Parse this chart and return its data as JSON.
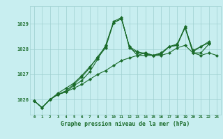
{
  "xlabel": "Graphe pression niveau de la mer (hPa)",
  "background_color": "#c8eef0",
  "grid_color": "#9ecfcf",
  "line_color": "#1a6b2a",
  "x_ticks": [
    0,
    1,
    2,
    3,
    4,
    5,
    6,
    7,
    8,
    9,
    10,
    11,
    12,
    13,
    14,
    15,
    16,
    17,
    18,
    19,
    20,
    21,
    22,
    23
  ],
  "ylim": [
    1025.4,
    1029.7
  ],
  "yticks": [
    1026,
    1027,
    1028,
    1029
  ],
  "series": [
    [
      1025.95,
      1025.68,
      1026.0,
      1026.2,
      1026.3,
      1026.45,
      1026.6,
      1026.8,
      1027.0,
      1027.15,
      1027.35,
      1027.55,
      1027.65,
      1027.75,
      1027.85,
      1027.75,
      1027.75,
      1027.85,
      1028.05,
      1028.15,
      1027.85,
      1027.75,
      1027.85,
      1027.75
    ],
    [
      1025.95,
      1025.68,
      1026.0,
      1026.2,
      1026.3,
      1026.55,
      1026.75,
      1027.1,
      1027.6,
      1028.15,
      1029.05,
      1029.2,
      1028.1,
      1027.75,
      1027.75,
      1027.75,
      1027.85,
      1028.1,
      1028.15,
      1028.85,
      1027.95,
      1028.1,
      1028.25,
      null
    ],
    [
      1025.95,
      1025.68,
      1026.0,
      1026.2,
      1026.35,
      1026.6,
      1026.9,
      1027.25,
      1027.7,
      1028.1,
      1029.1,
      1029.25,
      1028.05,
      1027.85,
      1027.85,
      1027.75,
      1027.85,
      1028.1,
      1028.2,
      1028.85,
      1027.85,
      1027.85,
      1028.2,
      null
    ],
    [
      1025.95,
      1025.68,
      1026.0,
      1026.25,
      1026.45,
      1026.65,
      1026.95,
      1027.3,
      1027.65,
      1028.05,
      1029.05,
      1029.2,
      1028.1,
      1027.9,
      1027.8,
      1027.75,
      1027.8,
      1028.1,
      1028.15,
      1028.9,
      1027.9,
      1028.1,
      1028.3,
      null
    ]
  ]
}
